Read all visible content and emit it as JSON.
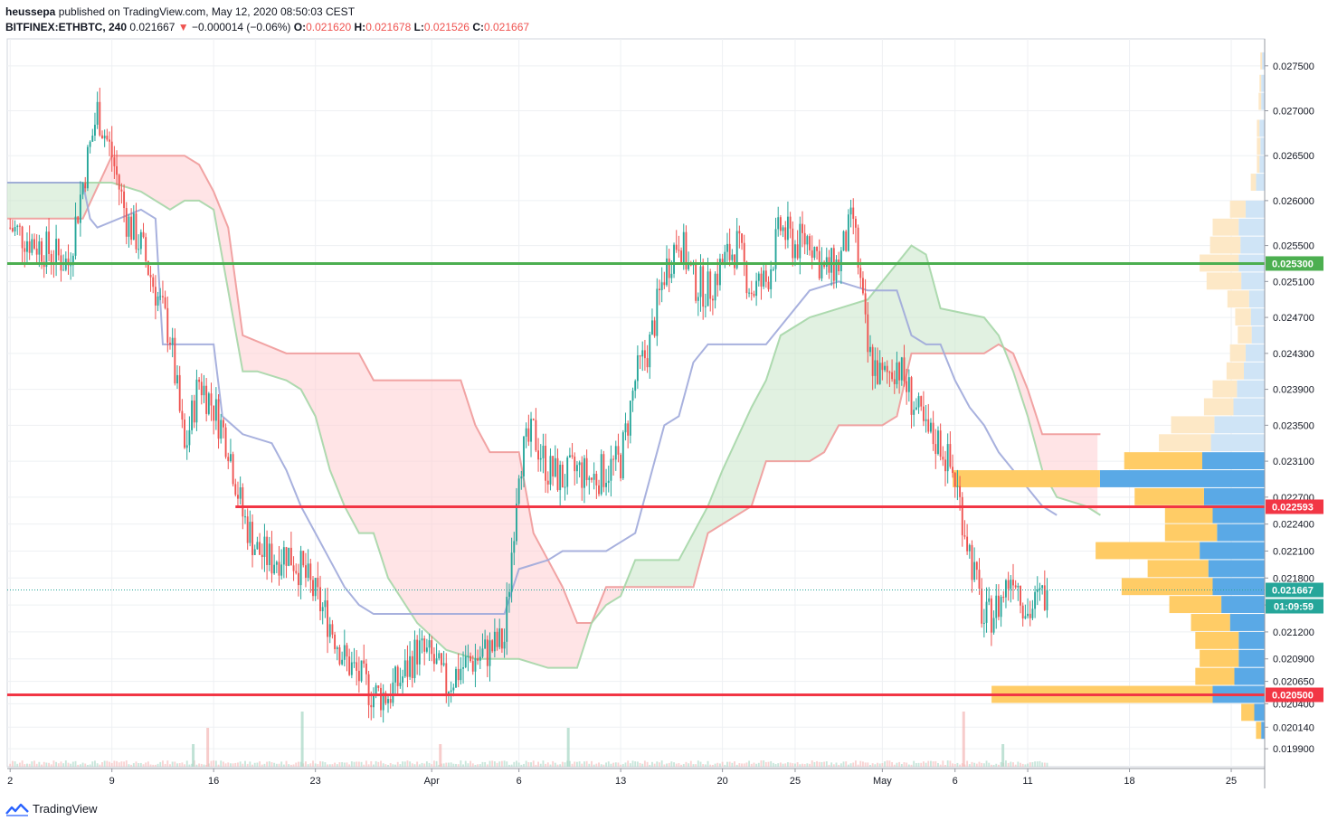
{
  "header": {
    "author": "heussepa",
    "published_text": "published on TradingView.com, May 12, 2020 08:50:03 CEST",
    "symbol": "BITFINEX:ETHBTC, 240",
    "last_price": "0.021667",
    "change_arrow": "▼",
    "change_text": "−0.000014 (−0.06%)",
    "o_label": "O:",
    "o_value": "0.021620",
    "h_label": "H:",
    "h_value": "0.021678",
    "l_label": "L:",
    "l_value": "0.021526",
    "c_label": "C:",
    "c_value": "0.021667"
  },
  "footer": {
    "brand": "TradingView",
    "logo_icon": "tradingview-logo-icon"
  },
  "colors": {
    "up": "#26a69a",
    "down": "#ef5350",
    "grid": "#eef0f3",
    "resistance": "#f23645",
    "support": "#4caf50",
    "kumo_bear_fill": "#ffcdd2",
    "kumo_bull_fill": "#c8e6c9",
    "span_a": "#a5d6a7",
    "span_b": "#ef9a9a",
    "kijun": "#9fa8da",
    "vp_up": "#ffcc66",
    "vp_down": "#5aa9e6",
    "vp_up_light": "#fde8c6",
    "vp_down_light": "#cfe4f6"
  },
  "chart_data": {
    "type": "candlestick",
    "symbol": "BITFINEX:ETHBTC",
    "interval": "240",
    "ylim": [
      0.0197,
      0.0278
    ],
    "y_ticks": [
      "0.027500",
      "0.027000",
      "0.026500",
      "0.026000",
      "0.025500",
      "0.025100",
      "0.024700",
      "0.024300",
      "0.023900",
      "0.023500",
      "0.023100",
      "0.022700",
      "0.022400",
      "0.022100",
      "0.021800",
      "0.021500",
      "0.021200",
      "0.020900",
      "0.020650",
      "0.020400",
      "0.020140",
      "0.019900"
    ],
    "x_ticks": [
      "2",
      "9",
      "16",
      "23",
      "Apr",
      "6",
      "13",
      "20",
      "25",
      "May",
      "6",
      "11",
      "18",
      "25"
    ],
    "x_tick_days": [
      0,
      7,
      14,
      21,
      29,
      35,
      42,
      49,
      54,
      60,
      65,
      70,
      77,
      84
    ],
    "x_range_days": [
      -0.2,
      86.3
    ],
    "price_path_days": [
      0,
      2,
      4,
      5,
      6,
      7,
      8,
      9,
      10,
      11,
      12,
      13,
      14,
      15,
      16,
      17,
      18,
      19,
      20,
      21,
      22,
      23,
      24,
      25,
      26,
      27,
      28,
      29,
      30,
      31,
      32,
      33,
      34,
      35,
      36,
      37,
      38,
      39,
      40,
      41,
      42,
      43,
      44,
      45,
      46,
      47,
      48,
      49,
      50,
      51,
      52,
      53,
      54,
      55,
      56,
      57,
      58,
      59,
      60,
      61,
      62,
      63,
      64,
      65,
      66,
      67,
      68,
      69,
      70,
      71
    ],
    "price_path": [
      0.0257,
      0.0255,
      0.0253,
      0.0262,
      0.027,
      0.0265,
      0.0258,
      0.0255,
      0.025,
      0.0245,
      0.0232,
      0.024,
      0.0237,
      0.0233,
      0.0225,
      0.0221,
      0.022,
      0.0221,
      0.0219,
      0.0216,
      0.0213,
      0.0209,
      0.0207,
      0.0205,
      0.0205,
      0.0207,
      0.021,
      0.0209,
      0.0206,
      0.0208,
      0.0209,
      0.021,
      0.0211,
      0.0231,
      0.0234,
      0.023,
      0.0229,
      0.023,
      0.0229,
      0.023,
      0.0231,
      0.024,
      0.0244,
      0.0252,
      0.0256,
      0.0251,
      0.025,
      0.0253,
      0.0255,
      0.025,
      0.0251,
      0.0257,
      0.0255,
      0.0256,
      0.0252,
      0.0253,
      0.0258,
      0.0243,
      0.024,
      0.0242,
      0.0238,
      0.0234,
      0.0233,
      0.0229,
      0.0221,
      0.0213,
      0.0215,
      0.0219,
      0.0214,
      0.0216
    ],
    "last_price": 0.021667,
    "price_scale_labels": [
      {
        "value": 0.0253,
        "text": "0.025300",
        "color": "#4caf50"
      },
      {
        "value": 0.022593,
        "text": "0.022593",
        "color": "#f23645"
      },
      {
        "value": 0.021667,
        "text": "0.021667",
        "color": "#26a69a"
      },
      {
        "value": 0.0205,
        "text": "0.020500",
        "color": "#f23645"
      }
    ],
    "countdown": "01:09:59",
    "horizontal_lines": [
      {
        "name": "support-line-025300",
        "value": 0.0253,
        "color": "#4caf50",
        "from_day": -0.2,
        "to_day": 86.3
      },
      {
        "name": "resistance-line-022593",
        "value": 0.022593,
        "color": "#f23645",
        "from_day": 15.5,
        "to_day": 86.3
      },
      {
        "name": "support-line-020500",
        "value": 0.0205,
        "color": "#f23645",
        "from_day": -0.2,
        "to_day": 86.3
      }
    ],
    "ichimoku": {
      "span_a": [
        [
          -0.2,
          0.0262
        ],
        [
          6,
          0.0262
        ],
        [
          7,
          0.0262
        ],
        [
          9,
          0.0261
        ],
        [
          11,
          0.0259
        ],
        [
          12,
          0.026
        ],
        [
          13,
          0.026
        ],
        [
          14,
          0.0259
        ],
        [
          15,
          0.025
        ],
        [
          16,
          0.0241
        ],
        [
          17,
          0.0241
        ],
        [
          19,
          0.024
        ],
        [
          20,
          0.0239
        ],
        [
          21,
          0.0236
        ],
        [
          22,
          0.023
        ],
        [
          23,
          0.0226
        ],
        [
          24,
          0.0223
        ],
        [
          25,
          0.0223
        ],
        [
          26,
          0.0218
        ],
        [
          28,
          0.0213
        ],
        [
          30,
          0.021
        ],
        [
          32,
          0.0209
        ],
        [
          35,
          0.0209
        ],
        [
          37,
          0.0208
        ],
        [
          39,
          0.0208
        ],
        [
          40,
          0.0213
        ],
        [
          41,
          0.0215
        ],
        [
          42,
          0.0216
        ],
        [
          43,
          0.022
        ],
        [
          46,
          0.022
        ],
        [
          48,
          0.0226
        ],
        [
          49,
          0.023
        ],
        [
          51,
          0.0237
        ],
        [
          52,
          0.024
        ],
        [
          53,
          0.0245
        ],
        [
          55,
          0.0247
        ],
        [
          57,
          0.0248
        ],
        [
          59,
          0.0249
        ],
        [
          61,
          0.0253
        ],
        [
          62,
          0.0255
        ],
        [
          63,
          0.0254
        ],
        [
          64,
          0.0248
        ],
        [
          67,
          0.0247
        ],
        [
          68,
          0.0245
        ],
        [
          69,
          0.0241
        ],
        [
          70,
          0.0236
        ],
        [
          71,
          0.023
        ],
        [
          72,
          0.0227
        ],
        [
          74,
          0.0226
        ],
        [
          75,
          0.0225
        ]
      ],
      "span_b": [
        [
          -0.2,
          0.0258
        ],
        [
          5,
          0.0258
        ],
        [
          7,
          0.0265
        ],
        [
          12,
          0.0265
        ],
        [
          13,
          0.0264
        ],
        [
          14,
          0.0261
        ],
        [
          15,
          0.0257
        ],
        [
          16,
          0.0245
        ],
        [
          19,
          0.0243
        ],
        [
          24,
          0.0243
        ],
        [
          25,
          0.024
        ],
        [
          31,
          0.024
        ],
        [
          32,
          0.0235
        ],
        [
          33,
          0.0232
        ],
        [
          35,
          0.0232
        ],
        [
          36,
          0.0223
        ],
        [
          37,
          0.022
        ],
        [
          38,
          0.0217
        ],
        [
          39,
          0.0213
        ],
        [
          40,
          0.0213
        ],
        [
          41,
          0.0217
        ],
        [
          47,
          0.0217
        ],
        [
          48,
          0.0223
        ],
        [
          51,
          0.0226
        ],
        [
          52,
          0.0231
        ],
        [
          55,
          0.0231
        ],
        [
          56,
          0.0232
        ],
        [
          57,
          0.0235
        ],
        [
          58,
          0.0235
        ],
        [
          60,
          0.0235
        ],
        [
          61,
          0.0236
        ],
        [
          62,
          0.0243
        ],
        [
          67,
          0.0243
        ],
        [
          68,
          0.0244
        ],
        [
          69,
          0.0243
        ],
        [
          70,
          0.0239
        ],
        [
          71,
          0.0234
        ],
        [
          75,
          0.0234
        ]
      ],
      "kijun": [
        [
          -0.2,
          0.0262
        ],
        [
          5,
          0.0262
        ],
        [
          5.5,
          0.0258
        ],
        [
          6,
          0.0257
        ],
        [
          9,
          0.0259
        ],
        [
          10,
          0.0258
        ],
        [
          10.5,
          0.0244
        ],
        [
          14,
          0.0244
        ],
        [
          14.6,
          0.0236
        ],
        [
          16,
          0.0234
        ],
        [
          18,
          0.0233
        ],
        [
          19,
          0.023
        ],
        [
          20,
          0.0226
        ],
        [
          21,
          0.0223
        ],
        [
          22,
          0.022
        ],
        [
          23,
          0.0217
        ],
        [
          24,
          0.0215
        ],
        [
          25,
          0.0214
        ],
        [
          28,
          0.0214
        ],
        [
          30,
          0.0214
        ],
        [
          33,
          0.0214
        ],
        [
          34,
          0.0214
        ],
        [
          35,
          0.0219
        ],
        [
          37,
          0.022
        ],
        [
          38,
          0.0221
        ],
        [
          41,
          0.0221
        ],
        [
          42,
          0.0222
        ],
        [
          43,
          0.0223
        ],
        [
          45,
          0.0235
        ],
        [
          46,
          0.0236
        ],
        [
          47,
          0.0242
        ],
        [
          48,
          0.0244
        ],
        [
          49,
          0.0244
        ],
        [
          52,
          0.0244
        ],
        [
          53,
          0.0246
        ],
        [
          55,
          0.025
        ],
        [
          57,
          0.0251
        ],
        [
          59,
          0.025
        ],
        [
          61,
          0.025
        ],
        [
          62,
          0.0245
        ],
        [
          63,
          0.0244
        ],
        [
          64,
          0.0244
        ],
        [
          65,
          0.024
        ],
        [
          66,
          0.0237
        ],
        [
          67,
          0.0235
        ],
        [
          68,
          0.0232
        ],
        [
          70,
          0.0228
        ],
        [
          71,
          0.0226
        ],
        [
          72,
          0.0225
        ]
      ]
    },
    "volume_profile": {
      "rows": [
        {
          "price": 0.02755,
          "up": 2,
          "down": 3
        },
        {
          "price": 0.0273,
          "up": 2,
          "down": 4
        },
        {
          "price": 0.0271,
          "up": 3,
          "down": 4
        },
        {
          "price": 0.0268,
          "up": 3,
          "down": 6
        },
        {
          "price": 0.0266,
          "up": 4,
          "down": 5
        },
        {
          "price": 0.0264,
          "up": 3,
          "down": 6
        },
        {
          "price": 0.0262,
          "up": 6,
          "down": 10
        },
        {
          "price": 0.0259,
          "up": 18,
          "down": 22
        },
        {
          "price": 0.0257,
          "up": 30,
          "down": 30
        },
        {
          "price": 0.0255,
          "up": 35,
          "down": 28
        },
        {
          "price": 0.0253,
          "up": 45,
          "down": 30
        },
        {
          "price": 0.0251,
          "up": 40,
          "down": 27
        },
        {
          "price": 0.0249,
          "up": 25,
          "down": 18
        },
        {
          "price": 0.0247,
          "up": 18,
          "down": 16
        },
        {
          "price": 0.0245,
          "up": 16,
          "down": 15
        },
        {
          "price": 0.0243,
          "up": 18,
          "down": 22
        },
        {
          "price": 0.0241,
          "up": 20,
          "down": 24
        },
        {
          "price": 0.0239,
          "up": 28,
          "down": 32
        },
        {
          "price": 0.0237,
          "up": 34,
          "down": 36
        },
        {
          "price": 0.0235,
          "up": 50,
          "down": 58
        },
        {
          "price": 0.0233,
          "up": 60,
          "down": 62
        },
        {
          "price": 0.0231,
          "up": 90,
          "down": 72
        },
        {
          "price": 0.0229,
          "up": 170,
          "down": 190
        },
        {
          "price": 0.0227,
          "up": 80,
          "down": 70
        },
        {
          "price": 0.0225,
          "up": 55,
          "down": 60
        },
        {
          "price": 0.0223,
          "up": 60,
          "down": 55
        },
        {
          "price": 0.0221,
          "up": 120,
          "down": 75
        },
        {
          "price": 0.0219,
          "up": 70,
          "down": 65
        },
        {
          "price": 0.0217,
          "up": 105,
          "down": 60
        },
        {
          "price": 0.0215,
          "up": 60,
          "down": 50
        },
        {
          "price": 0.0213,
          "up": 45,
          "down": 40
        },
        {
          "price": 0.0211,
          "up": 50,
          "down": 30
        },
        {
          "price": 0.0209,
          "up": 45,
          "down": 30
        },
        {
          "price": 0.0207,
          "up": 45,
          "down": 35
        },
        {
          "price": 0.0205,
          "up": 255,
          "down": 60
        },
        {
          "price": 0.0203,
          "up": 15,
          "down": 12
        },
        {
          "price": 0.0201,
          "up": 6,
          "down": 4
        }
      ]
    },
    "volume_spikes_days": [
      12.5,
      13.5,
      20,
      29.5,
      38.3,
      65.5,
      68.2
    ]
  }
}
